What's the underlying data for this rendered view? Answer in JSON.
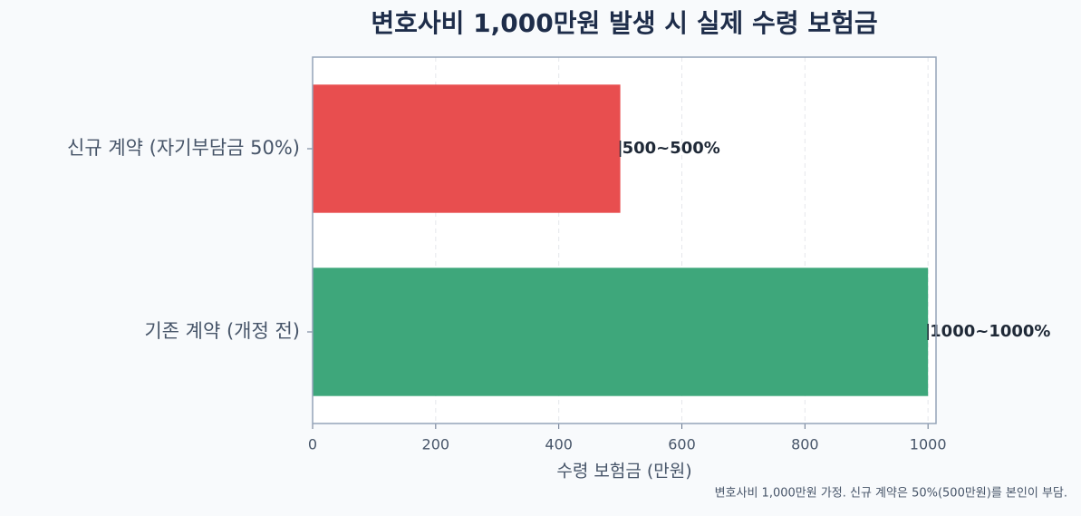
{
  "chart_data": {
    "type": "barh",
    "title": "변호사비 1,000만원 발생 시 실제 수령 보험금",
    "xlabel": "수령 보험금 (만원)",
    "footnote": "변호사비 1,000만원 가정. 신규 계약은 50%(500만원)를 본인이 부담.",
    "categories": [
      "신규 계약 (자기부담금 50%)",
      "기존 계약 (개정 전)"
    ],
    "values": [
      500,
      1000
    ],
    "value_labels": [
      "500~500%",
      "1000~1000%"
    ],
    "colors": [
      "#e84e4f",
      "#3ea77b"
    ],
    "xlim": [
      0,
      1013
    ],
    "xticks": [
      0,
      200,
      400,
      600,
      800,
      1000
    ],
    "grid": true
  }
}
